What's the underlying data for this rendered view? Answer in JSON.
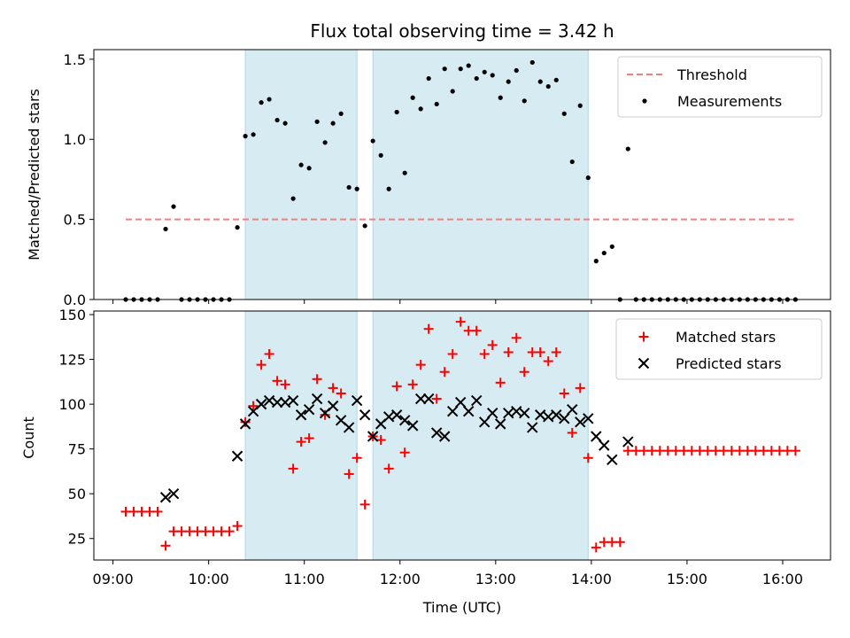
{
  "title": "Flux total observing time = 3.42 h",
  "chart_data": [
    {
      "type": "scatter",
      "panel": "top",
      "ylabel": "Matched/Predicted stars",
      "xlabel": "",
      "ylim": [
        0,
        1.56
      ],
      "yticks": [
        0.0,
        0.5,
        1.0,
        1.5
      ],
      "ytick_labels": [
        "0.0",
        "0.5",
        "1.0",
        "1.5"
      ],
      "legend_position": "upper right",
      "colors": {
        "threshold": "#f08080",
        "measurements": "#000000",
        "shade": "#add8e6"
      },
      "threshold": {
        "name": "Threshold",
        "value": 0.5,
        "x_start": "09:08",
        "x_end": "16:07"
      },
      "series": [
        {
          "name": "Measurements",
          "x": [
            "09:08",
            "09:13",
            "09:18",
            "09:23",
            "09:28",
            "09:33",
            "09:38",
            "09:43",
            "09:48",
            "09:53",
            "09:58",
            "10:03",
            "10:08",
            "10:13",
            "10:18",
            "10:23",
            "10:28",
            "10:33",
            "10:38",
            "10:43",
            "10:48",
            "10:53",
            "10:58",
            "11:03",
            "11:08",
            "11:13",
            "11:18",
            "11:23",
            "11:28",
            "11:33",
            "11:38",
            "11:43",
            "11:48",
            "11:53",
            "11:58",
            "12:03",
            "12:08",
            "12:13",
            "12:18",
            "12:23",
            "12:28",
            "12:33",
            "12:38",
            "12:43",
            "12:48",
            "12:53",
            "12:58",
            "13:03",
            "13:08",
            "13:13",
            "13:18",
            "13:23",
            "13:28",
            "13:33",
            "13:38",
            "13:43",
            "13:48",
            "13:53",
            "13:58",
            "14:03",
            "14:08",
            "14:13",
            "14:18",
            "14:23",
            "14:28",
            "14:33",
            "14:38",
            "14:43",
            "14:48",
            "14:53",
            "14:58",
            "15:03",
            "15:08",
            "15:13",
            "15:18",
            "15:23",
            "15:28",
            "15:33",
            "15:38",
            "15:43",
            "15:48",
            "15:53",
            "15:58",
            "16:03",
            "16:08"
          ],
          "y": [
            0,
            0,
            0,
            0,
            0,
            0.44,
            0.58,
            0,
            0,
            0,
            0,
            0,
            0,
            0,
            0.45,
            1.02,
            1.03,
            1.23,
            1.25,
            1.12,
            1.1,
            0.63,
            0.84,
            0.82,
            1.11,
            0.98,
            1.1,
            1.16,
            0.7,
            0.69,
            0.46,
            0.99,
            0.9,
            0.69,
            1.17,
            0.79,
            1.26,
            1.19,
            1.38,
            1.22,
            1.44,
            1.3,
            1.44,
            1.46,
            1.38,
            1.42,
            1.4,
            1.26,
            1.36,
            1.43,
            1.24,
            1.48,
            1.36,
            1.33,
            1.37,
            1.16,
            0.86,
            1.21,
            0.76,
            0.24,
            0.29,
            0.33,
            0,
            0.94,
            0,
            0,
            0,
            0,
            0,
            0,
            0,
            0,
            0,
            0,
            0,
            0,
            0,
            0,
            0,
            0,
            0,
            0,
            0,
            0,
            0
          ]
        }
      ],
      "shaded_spans": [
        [
          "10:23",
          "11:33"
        ],
        [
          "11:43",
          "13:58"
        ]
      ]
    },
    {
      "type": "scatter",
      "panel": "bottom",
      "ylabel": "Count",
      "xlabel": "Time (UTC)",
      "ylim": [
        13,
        152
      ],
      "yticks": [
        25,
        50,
        75,
        100,
        125,
        150
      ],
      "ytick_labels": [
        "25",
        "50",
        "75",
        "100",
        "125",
        "150"
      ],
      "xticks": [
        "09:00",
        "10:00",
        "11:00",
        "12:00",
        "13:00",
        "14:00",
        "15:00",
        "16:00"
      ],
      "xtick_labels": [
        "09:00",
        "10:00",
        "11:00",
        "12:00",
        "13:00",
        "14:00",
        "15:00",
        "16:00"
      ],
      "xlim": [
        "08:48",
        "16:30"
      ],
      "legend_position": "upper right",
      "colors": {
        "matched": "#ff0000",
        "predicted": "#000000",
        "shade": "#add8e6"
      },
      "series": [
        {
          "name": "Matched stars",
          "marker": "plus",
          "x": [
            "09:08",
            "09:13",
            "09:18",
            "09:23",
            "09:28",
            "09:33",
            "09:38",
            "09:43",
            "09:48",
            "09:53",
            "09:58",
            "10:03",
            "10:08",
            "10:13",
            "10:18",
            "10:23",
            "10:28",
            "10:33",
            "10:38",
            "10:43",
            "10:48",
            "10:53",
            "10:58",
            "11:03",
            "11:08",
            "11:13",
            "11:18",
            "11:23",
            "11:28",
            "11:33",
            "11:38",
            "11:43",
            "11:48",
            "11:53",
            "11:58",
            "12:03",
            "12:08",
            "12:13",
            "12:18",
            "12:23",
            "12:28",
            "12:33",
            "12:38",
            "12:43",
            "12:48",
            "12:53",
            "12:58",
            "13:03",
            "13:08",
            "13:13",
            "13:18",
            "13:23",
            "13:28",
            "13:33",
            "13:38",
            "13:43",
            "13:48",
            "13:53",
            "13:58",
            "14:03",
            "14:08",
            "14:13",
            "14:18",
            "14:23",
            "14:28",
            "14:33",
            "14:38",
            "14:43",
            "14:48",
            "14:53",
            "14:58",
            "15:03",
            "15:08",
            "15:13",
            "15:18",
            "15:23",
            "15:28",
            "15:33",
            "15:38",
            "15:43",
            "15:48",
            "15:53",
            "15:58",
            "16:03",
            "16:08"
          ],
          "y": [
            40,
            40,
            40,
            40,
            40,
            21,
            29,
            29,
            29,
            29,
            29,
            29,
            29,
            29,
            32,
            90,
            99,
            122,
            128,
            113,
            111,
            64,
            79,
            81,
            114,
            94,
            109,
            106,
            61,
            70,
            44,
            82,
            80,
            64,
            110,
            73,
            111,
            122,
            142,
            103,
            118,
            128,
            146,
            141,
            141,
            128,
            133,
            112,
            129,
            137,
            118,
            129,
            129,
            124,
            129,
            106,
            84,
            109,
            70,
            20,
            23,
            23,
            23,
            74,
            74,
            74,
            74,
            74,
            74,
            74,
            74,
            74,
            74,
            74,
            74,
            74,
            74,
            74,
            74,
            74,
            74,
            74,
            74,
            74,
            74
          ]
        },
        {
          "name": "Predicted stars",
          "marker": "x",
          "x": [
            "09:33",
            "09:38",
            "10:18",
            "10:23",
            "10:28",
            "10:33",
            "10:38",
            "10:43",
            "10:48",
            "10:53",
            "10:58",
            "11:03",
            "11:08",
            "11:13",
            "11:18",
            "11:23",
            "11:28",
            "11:33",
            "11:38",
            "11:43",
            "11:48",
            "11:53",
            "11:58",
            "12:03",
            "12:08",
            "12:13",
            "12:18",
            "12:23",
            "12:28",
            "12:33",
            "12:38",
            "12:43",
            "12:48",
            "12:53",
            "12:58",
            "13:03",
            "13:08",
            "13:13",
            "13:18",
            "13:23",
            "13:28",
            "13:33",
            "13:38",
            "13:43",
            "13:48",
            "13:53",
            "13:58",
            "14:03",
            "14:08",
            "14:13",
            "14:23"
          ],
          "y": [
            48,
            50,
            71,
            89,
            96,
            100,
            102,
            101,
            101,
            102,
            94,
            97,
            103,
            95,
            99,
            91,
            87,
            102,
            94,
            82,
            89,
            93,
            94,
            91,
            88,
            103,
            103,
            84,
            82,
            96,
            101,
            96,
            102,
            90,
            95,
            89,
            95,
            96,
            95,
            87,
            94,
            93,
            94,
            92,
            97,
            90,
            92,
            82,
            77,
            69,
            79
          ]
        }
      ],
      "shaded_spans": [
        [
          "10:23",
          "11:33"
        ],
        [
          "11:43",
          "13:58"
        ]
      ]
    }
  ]
}
